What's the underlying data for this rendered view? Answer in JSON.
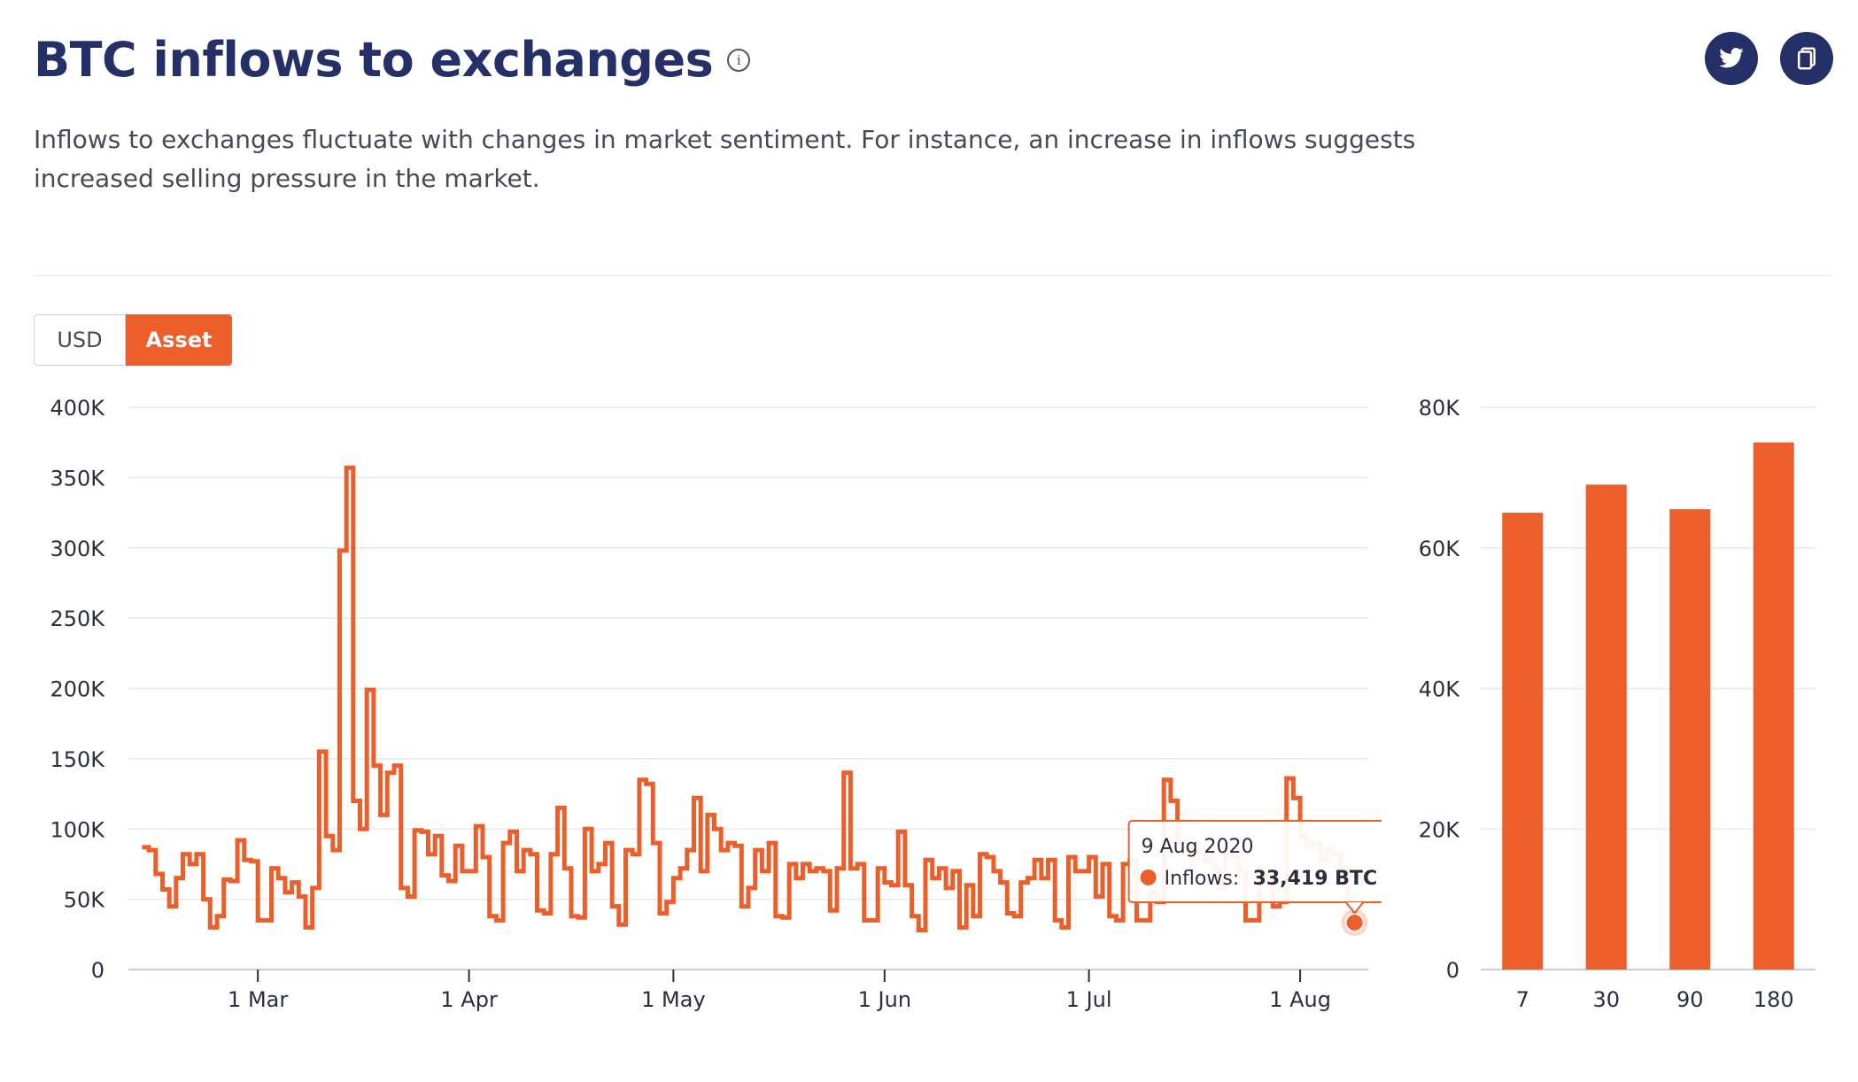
{
  "header": {
    "title": "BTC inflows to exchanges",
    "info_icon": "info-icon",
    "description": "Inflows to exchanges fluctuate with changes in market sentiment. For instance, an increase in inflows suggests increased selling pressure in the market."
  },
  "share_buttons": [
    {
      "icon": "twitter-icon"
    },
    {
      "icon": "copy-icon"
    }
  ],
  "toggle": {
    "options": [
      "USD",
      "Asset"
    ],
    "selected": "Asset"
  },
  "colors": {
    "accent": "#ec5f2b",
    "title": "#253068",
    "grid": "#e6e8ef"
  },
  "tooltip": {
    "date": "9 Aug 2020",
    "series_label": "Inflows:",
    "value": "33,419 BTC"
  },
  "chart_data": [
    {
      "type": "line",
      "step": true,
      "y_tick_labels": [
        "0",
        "50K",
        "100K",
        "150K",
        "200K",
        "250K",
        "300K",
        "350K",
        "400K"
      ],
      "ylim": [
        0,
        400000
      ],
      "x_tick_labels": [
        "1 Mar",
        "1 Apr",
        "1 May",
        "1 Jun",
        "1 Jul",
        "1 Aug"
      ],
      "x_tick_dates": [
        "2020-03-01",
        "2020-04-01",
        "2020-05-01",
        "2020-06-01",
        "2020-07-01",
        "2020-08-01"
      ],
      "xlim": [
        "2020-02-11",
        "2020-08-11"
      ],
      "grid": true,
      "series": [
        {
          "points": [
            [
              "2020-02-13",
              87000
            ],
            [
              "2020-02-14",
              85000
            ],
            [
              "2020-02-15",
              68000
            ],
            [
              "2020-02-16",
              57000
            ],
            [
              "2020-02-17",
              45000
            ],
            [
              "2020-02-18",
              65000
            ],
            [
              "2020-02-19",
              82000
            ],
            [
              "2020-02-20",
              75000
            ],
            [
              "2020-02-21",
              82000
            ],
            [
              "2020-02-22",
              50000
            ],
            [
              "2020-02-23",
              30000
            ],
            [
              "2020-02-24",
              38000
            ],
            [
              "2020-02-25",
              64000
            ],
            [
              "2020-02-26",
              63000
            ],
            [
              "2020-02-27",
              92000
            ],
            [
              "2020-02-28",
              78000
            ],
            [
              "2020-02-29",
              77000
            ],
            [
              "2020-03-01",
              35000
            ],
            [
              "2020-03-02",
              35000
            ],
            [
              "2020-03-03",
              72000
            ],
            [
              "2020-03-04",
              65000
            ],
            [
              "2020-03-05",
              55000
            ],
            [
              "2020-03-06",
              62000
            ],
            [
              "2020-03-07",
              52000
            ],
            [
              "2020-03-08",
              30000
            ],
            [
              "2020-03-09",
              58000
            ],
            [
              "2020-03-10",
              155000
            ],
            [
              "2020-03-11",
              95000
            ],
            [
              "2020-03-12",
              85000
            ],
            [
              "2020-03-13",
              298000
            ],
            [
              "2020-03-14",
              357000
            ],
            [
              "2020-03-15",
              120000
            ],
            [
              "2020-03-16",
              100000
            ],
            [
              "2020-03-17",
              199000
            ],
            [
              "2020-03-18",
              145000
            ],
            [
              "2020-03-19",
              110000
            ],
            [
              "2020-03-20",
              140000
            ],
            [
              "2020-03-21",
              145000
            ],
            [
              "2020-03-22",
              58000
            ],
            [
              "2020-03-23",
              52000
            ],
            [
              "2020-03-24",
              99000
            ],
            [
              "2020-03-25",
              98000
            ],
            [
              "2020-03-26",
              82000
            ],
            [
              "2020-03-27",
              95000
            ],
            [
              "2020-03-28",
              67000
            ],
            [
              "2020-03-29",
              63000
            ],
            [
              "2020-03-30",
              88000
            ],
            [
              "2020-03-31",
              70000
            ],
            [
              "2020-04-01",
              70000
            ],
            [
              "2020-04-02",
              102000
            ],
            [
              "2020-04-03",
              80000
            ],
            [
              "2020-04-04",
              38000
            ],
            [
              "2020-04-05",
              35000
            ],
            [
              "2020-04-06",
              90000
            ],
            [
              "2020-04-07",
              98000
            ],
            [
              "2020-04-08",
              70000
            ],
            [
              "2020-04-09",
              85000
            ],
            [
              "2020-04-10",
              82000
            ],
            [
              "2020-04-11",
              42000
            ],
            [
              "2020-04-12",
              40000
            ],
            [
              "2020-04-13",
              82000
            ],
            [
              "2020-04-14",
              115000
            ],
            [
              "2020-04-15",
              72000
            ],
            [
              "2020-04-16",
              38000
            ],
            [
              "2020-04-17",
              37000
            ],
            [
              "2020-04-18",
              100000
            ],
            [
              "2020-04-19",
              70000
            ],
            [
              "2020-04-20",
              75000
            ],
            [
              "2020-04-21",
              90000
            ],
            [
              "2020-04-22",
              45000
            ],
            [
              "2020-04-23",
              32000
            ],
            [
              "2020-04-24",
              85000
            ],
            [
              "2020-04-25",
              82000
            ],
            [
              "2020-04-26",
              135000
            ],
            [
              "2020-04-27",
              132000
            ],
            [
              "2020-04-28",
              90000
            ],
            [
              "2020-04-29",
              40000
            ],
            [
              "2020-04-30",
              48000
            ],
            [
              "2020-05-01",
              65000
            ],
            [
              "2020-05-02",
              72000
            ],
            [
              "2020-05-03",
              85000
            ],
            [
              "2020-05-04",
              122000
            ],
            [
              "2020-05-05",
              70000
            ],
            [
              "2020-05-06",
              110000
            ],
            [
              "2020-05-07",
              100000
            ],
            [
              "2020-05-08",
              85000
            ],
            [
              "2020-05-09",
              90000
            ],
            [
              "2020-05-10",
              88000
            ],
            [
              "2020-05-11",
              45000
            ],
            [
              "2020-05-12",
              58000
            ],
            [
              "2020-05-13",
              85000
            ],
            [
              "2020-05-14",
              70000
            ],
            [
              "2020-05-15",
              90000
            ],
            [
              "2020-05-16",
              38000
            ],
            [
              "2020-05-17",
              37000
            ],
            [
              "2020-05-18",
              75000
            ],
            [
              "2020-05-19",
              65000
            ],
            [
              "2020-05-20",
              75000
            ],
            [
              "2020-05-21",
              70000
            ],
            [
              "2020-05-22",
              72000
            ],
            [
              "2020-05-23",
              70000
            ],
            [
              "2020-05-24",
              42000
            ],
            [
              "2020-05-25",
              72000
            ],
            [
              "2020-05-26",
              140000
            ],
            [
              "2020-05-27",
              72000
            ],
            [
              "2020-05-28",
              75000
            ],
            [
              "2020-05-29",
              35000
            ],
            [
              "2020-05-30",
              35000
            ],
            [
              "2020-05-31",
              72000
            ],
            [
              "2020-06-01",
              62000
            ],
            [
              "2020-06-02",
              60000
            ],
            [
              "2020-06-03",
              98000
            ],
            [
              "2020-06-04",
              60000
            ],
            [
              "2020-06-05",
              38000
            ],
            [
              "2020-06-06",
              28000
            ],
            [
              "2020-06-07",
              78000
            ],
            [
              "2020-06-08",
              65000
            ],
            [
              "2020-06-09",
              72000
            ],
            [
              "2020-06-10",
              58000
            ],
            [
              "2020-06-11",
              70000
            ],
            [
              "2020-06-12",
              30000
            ],
            [
              "2020-06-13",
              60000
            ],
            [
              "2020-06-14",
              38000
            ],
            [
              "2020-06-15",
              82000
            ],
            [
              "2020-06-16",
              80000
            ],
            [
              "2020-06-17",
              70000
            ],
            [
              "2020-06-18",
              62000
            ],
            [
              "2020-06-19",
              40000
            ],
            [
              "2020-06-20",
              38000
            ],
            [
              "2020-06-21",
              62000
            ],
            [
              "2020-06-22",
              65000
            ],
            [
              "2020-06-23",
              78000
            ],
            [
              "2020-06-24",
              65000
            ],
            [
              "2020-06-25",
              78000
            ],
            [
              "2020-06-26",
              35000
            ],
            [
              "2020-06-27",
              30000
            ],
            [
              "2020-06-28",
              80000
            ],
            [
              "2020-06-29",
              70000
            ],
            [
              "2020-06-30",
              70000
            ],
            [
              "2020-07-01",
              80000
            ],
            [
              "2020-07-02",
              52000
            ],
            [
              "2020-07-03",
              75000
            ],
            [
              "2020-07-04",
              38000
            ],
            [
              "2020-07-05",
              35000
            ],
            [
              "2020-07-06",
              75000
            ],
            [
              "2020-07-07",
              78000
            ],
            [
              "2020-07-08",
              35000
            ],
            [
              "2020-07-09",
              35000
            ],
            [
              "2020-07-10",
              55000
            ],
            [
              "2020-07-11",
              48000
            ],
            [
              "2020-07-12",
              135000
            ],
            [
              "2020-07-13",
              120000
            ],
            [
              "2020-07-14",
              90000
            ],
            [
              "2020-07-15",
              88000
            ],
            [
              "2020-07-16",
              80000
            ],
            [
              "2020-07-17",
              85000
            ],
            [
              "2020-07-18",
              78000
            ],
            [
              "2020-07-19",
              72000
            ],
            [
              "2020-07-20",
              58000
            ],
            [
              "2020-07-21",
              85000
            ],
            [
              "2020-07-22",
              80000
            ],
            [
              "2020-07-23",
              70000
            ],
            [
              "2020-07-24",
              35000
            ],
            [
              "2020-07-25",
              35000
            ],
            [
              "2020-07-26",
              72000
            ],
            [
              "2020-07-27",
              65000
            ],
            [
              "2020-07-28",
              45000
            ],
            [
              "2020-07-29",
              48000
            ],
            [
              "2020-07-30",
              136000
            ],
            [
              "2020-07-31",
              122000
            ],
            [
              "2020-08-01",
              95000
            ],
            [
              "2020-08-02",
              88000
            ],
            [
              "2020-08-03",
              90000
            ],
            [
              "2020-08-04",
              78000
            ],
            [
              "2020-08-05",
              85000
            ],
            [
              "2020-08-06",
              82000
            ],
            [
              "2020-08-07",
              72000
            ],
            [
              "2020-08-08",
              50000
            ],
            [
              "2020-08-09",
              33419
            ]
          ]
        }
      ]
    },
    {
      "type": "bar",
      "categories": [
        "7",
        "30",
        "90",
        "180"
      ],
      "values": [
        65000,
        69000,
        65500,
        75000
      ],
      "y_tick_labels": [
        "0",
        "20K",
        "40K",
        "60K",
        "80K"
      ],
      "ylim": [
        0,
        80000
      ],
      "grid": true
    }
  ]
}
